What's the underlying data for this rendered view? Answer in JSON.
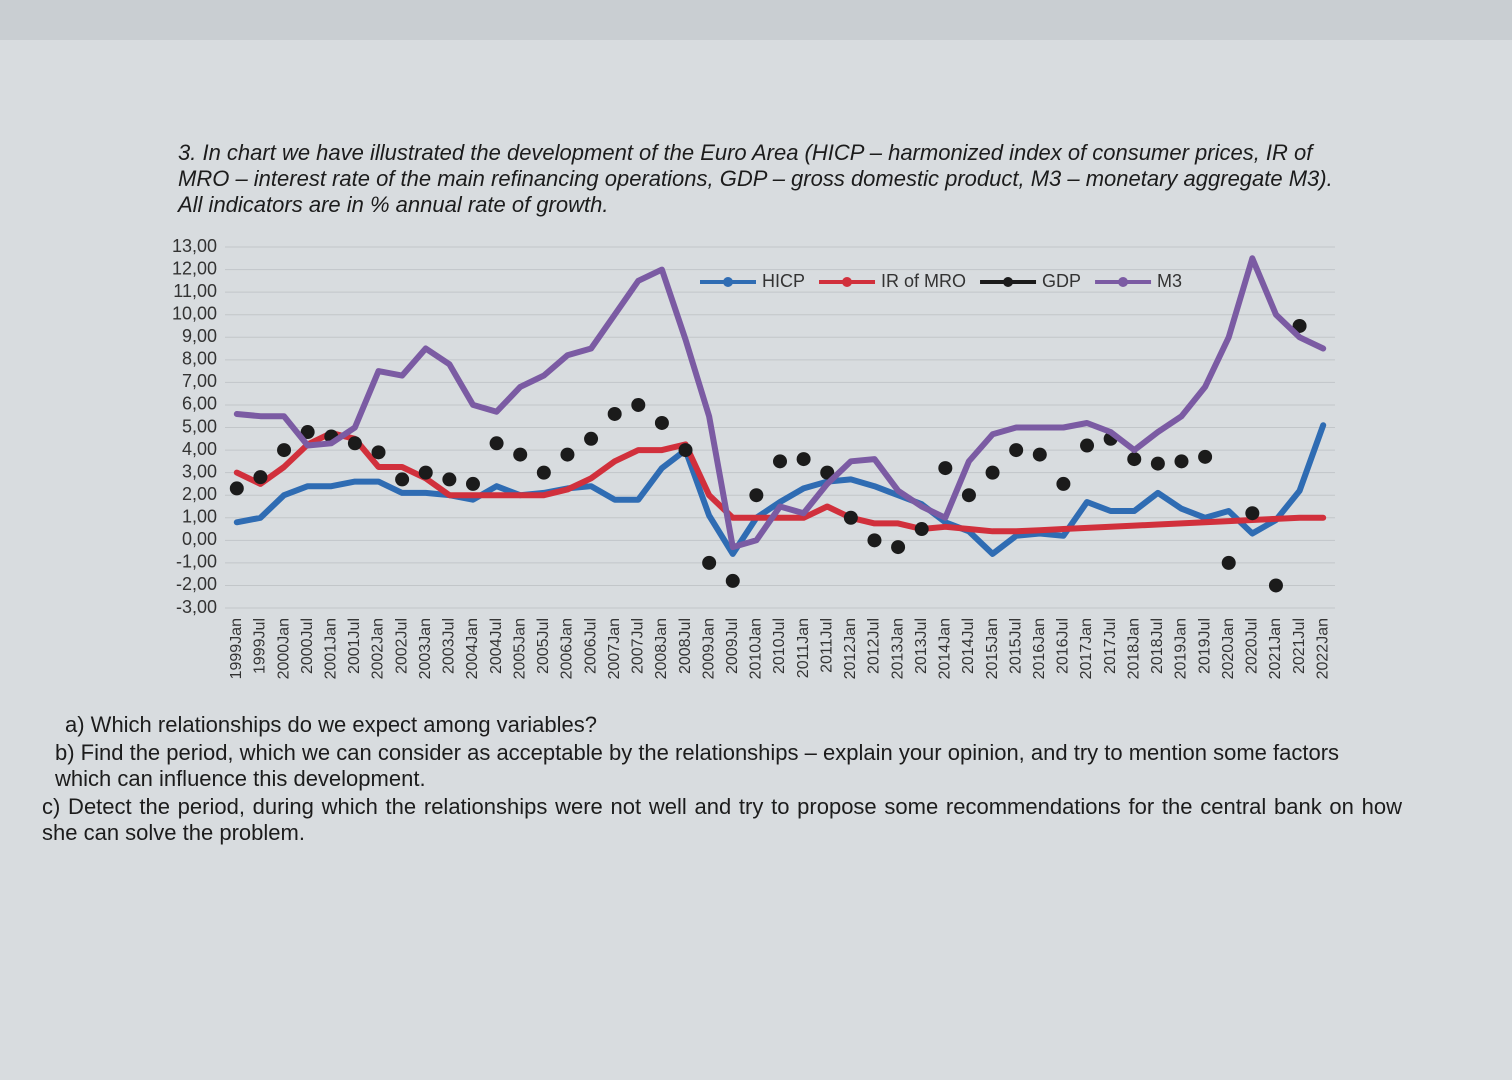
{
  "question": {
    "intro": "3. In chart we have illustrated the development of the Euro Area (HICP – harmonized index of consumer prices, IR of MRO – interest rate of the main refinancing operations, GDP – gross domestic product, M3 – monetary aggregate M3). All indicators are in % annual rate of growth.",
    "items": [
      "a) Which relationships do we expect among variables?",
      "b) Find the period, which we can consider as acceptable by the relationships – explain your opinion, and try to mention some factors which can influence this development.",
      "c) Detect the period, during which the relationships were not well and try to propose some recommendations for the central bank on how she can solve the problem."
    ]
  },
  "chart_data": {
    "type": "line",
    "categories": [
      "1999Jan",
      "1999Jul",
      "2000Jan",
      "2000Jul",
      "2001Jan",
      "2001Jul",
      "2002Jan",
      "2002Jul",
      "2003Jan",
      "2003Jul",
      "2004Jan",
      "2004Jul",
      "2005Jan",
      "2005Jul",
      "2006Jan",
      "2006Jul",
      "2007Jan",
      "2007Jul",
      "2008Jan",
      "2008Jul",
      "2009Jan",
      "2009Jul",
      "2010Jan",
      "2010Jul",
      "2011Jan",
      "2011Jul",
      "2012Jan",
      "2012Jul",
      "2013Jan",
      "2013Jul",
      "2014Jan",
      "2014Jul",
      "2015Jan",
      "2015Jul",
      "2016Jan",
      "2016Jul",
      "2017Jan",
      "2017Jul",
      "2018Jan",
      "2018Jul",
      "2019Jan",
      "2019Jul",
      "2020Jan",
      "2020Jul",
      "2021Jan",
      "2021Jul",
      "2022Jan"
    ],
    "series": [
      {
        "name": "HICP",
        "color": "#2f6cb3",
        "markers_only": false,
        "values": [
          0.8,
          1.0,
          2.0,
          2.4,
          2.4,
          2.6,
          2.6,
          2.1,
          2.1,
          2.0,
          1.8,
          2.4,
          2.0,
          2.1,
          2.3,
          2.4,
          1.8,
          1.8,
          3.2,
          4.0,
          1.1,
          -0.6,
          1.0,
          1.7,
          2.3,
          2.6,
          2.7,
          2.4,
          2.0,
          1.6,
          0.8,
          0.4,
          -0.6,
          0.2,
          0.3,
          0.2,
          1.7,
          1.3,
          1.3,
          2.1,
          1.4,
          1.0,
          1.3,
          0.3,
          0.9,
          2.2,
          5.1
        ]
      },
      {
        "name": "IR of MRO",
        "color": "#d1303c",
        "markers_only": false,
        "values": [
          3.0,
          2.5,
          3.25,
          4.25,
          4.75,
          4.5,
          3.25,
          3.25,
          2.75,
          2.0,
          2.0,
          2.0,
          2.0,
          2.0,
          2.25,
          2.75,
          3.5,
          4.0,
          4.0,
          4.25,
          2.0,
          1.0,
          1.0,
          1.0,
          1.0,
          1.5,
          1.0,
          0.75,
          0.75,
          0.5,
          0.6,
          0.5,
          0.4,
          0.4,
          0.45,
          0.5,
          0.55,
          0.6,
          0.65,
          0.7,
          0.75,
          0.8,
          0.85,
          0.9,
          0.95,
          1.0,
          1.0
        ]
      },
      {
        "name": "GDP",
        "color": "#1b1b1b",
        "markers_only": true,
        "values": [
          2.3,
          2.8,
          4.0,
          4.8,
          4.6,
          4.3,
          3.9,
          2.7,
          3.0,
          2.7,
          2.5,
          4.3,
          3.8,
          3.0,
          3.8,
          4.5,
          5.6,
          6.0,
          5.2,
          4.0,
          -1.0,
          -1.8,
          2.0,
          3.5,
          3.6,
          3.0,
          1.0,
          0.0,
          -0.3,
          0.5,
          3.2,
          2.0,
          3.0,
          4.0,
          3.8,
          2.5,
          4.2,
          4.5,
          3.6,
          3.4,
          3.5,
          3.7,
          -1.0,
          1.2,
          -2.0,
          9.5,
          null
        ]
      },
      {
        "name": "M3",
        "color": "#7b5ba3",
        "markers_only": false,
        "values": [
          5.6,
          5.5,
          5.5,
          4.2,
          4.3,
          5.0,
          7.5,
          7.3,
          8.5,
          7.8,
          6.0,
          5.7,
          6.8,
          7.3,
          8.2,
          8.5,
          10.0,
          11.5,
          12.0,
          8.9,
          5.5,
          -0.3,
          0.0,
          1.5,
          1.2,
          2.5,
          3.5,
          3.6,
          2.2,
          1.5,
          1.0,
          3.5,
          4.7,
          5.0,
          5.0,
          5.0,
          5.2,
          4.8,
          4.0,
          4.8,
          5.5,
          6.8,
          9.0,
          12.5,
          10.0,
          9.0,
          8.5
        ]
      }
    ],
    "ylim": [
      -3,
      13
    ],
    "yticks": [
      {
        "value": 13,
        "label": "13,00"
      },
      {
        "value": 12,
        "label": "12,00"
      },
      {
        "value": 11,
        "label": "11,00"
      },
      {
        "value": 10,
        "label": "10,00"
      },
      {
        "value": 9,
        "label": "9,00"
      },
      {
        "value": 8,
        "label": "8,00"
      },
      {
        "value": 7,
        "label": "7,00"
      },
      {
        "value": 6,
        "label": "6,00"
      },
      {
        "value": 5,
        "label": "5,00"
      },
      {
        "value": 4,
        "label": "4,00"
      },
      {
        "value": 3,
        "label": "3,00"
      },
      {
        "value": 2,
        "label": "2,00"
      },
      {
        "value": 1,
        "label": "1,00"
      },
      {
        "value": 0,
        "label": "0,00"
      },
      {
        "value": -1,
        "label": "-1,00"
      },
      {
        "value": -2,
        "label": "-2,00"
      },
      {
        "value": -3,
        "label": "-3,00"
      }
    ],
    "grid": true,
    "legend": "top"
  }
}
